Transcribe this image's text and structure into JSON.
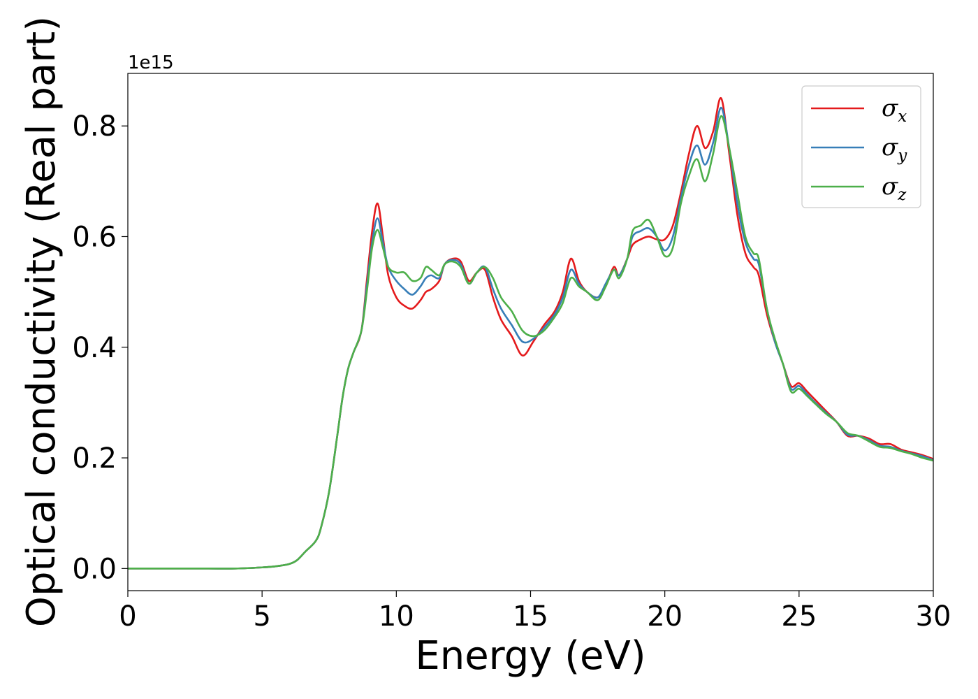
{
  "chart_data": {
    "type": "line",
    "xlabel": "Energy (eV)",
    "ylabel": "Optical conductivity (Real part)",
    "y_offset_label": "1e15",
    "y_scale_factor": 1000000000000000.0,
    "xlim": [
      0,
      30
    ],
    "ylim": [
      -0.04,
      0.895
    ],
    "x_ticks": [
      "0",
      "5",
      "10",
      "15",
      "20",
      "25",
      "30"
    ],
    "y_ticks": [
      "0.0",
      "0.2",
      "0.4",
      "0.6",
      "0.8"
    ],
    "grid": false,
    "legend_position": "top-right",
    "x": [
      0,
      1,
      2,
      3,
      4,
      5,
      5.5,
      6,
      6.3,
      6.6,
      7,
      7.2,
      7.5,
      7.8,
      8,
      8.2,
      8.4,
      8.7,
      8.9,
      9.1,
      9.3,
      9.5,
      9.7,
      10,
      10.3,
      10.6,
      10.9,
      11.1,
      11.3,
      11.6,
      11.8,
      12.1,
      12.4,
      12.7,
      13,
      13.3,
      13.6,
      13.9,
      14.3,
      14.7,
      15.1,
      15.5,
      15.9,
      16.2,
      16.5,
      16.8,
      17.1,
      17.5,
      17.8,
      18.1,
      18.3,
      18.6,
      18.8,
      19.1,
      19.4,
      19.7,
      20,
      20.3,
      20.6,
      20.9,
      21.2,
      21.5,
      21.8,
      22.1,
      22.4,
      22.7,
      23,
      23.3,
      23.5,
      23.8,
      24.1,
      24.4,
      24.7,
      25,
      25.3,
      25.6,
      26,
      26.4,
      26.8,
      27.2,
      27.6,
      28,
      28.4,
      28.8,
      29.2,
      29.6,
      30
    ],
    "series": [
      {
        "name": "σ",
        "subscript": "x",
        "color": "#e41a1c",
        "values": [
          0,
          0,
          0,
          0,
          0,
          0.002,
          0.004,
          0.008,
          0.015,
          0.03,
          0.05,
          0.075,
          0.14,
          0.24,
          0.31,
          0.36,
          0.39,
          0.43,
          0.52,
          0.61,
          0.66,
          0.6,
          0.53,
          0.49,
          0.475,
          0.47,
          0.485,
          0.5,
          0.505,
          0.52,
          0.55,
          0.56,
          0.555,
          0.52,
          0.535,
          0.54,
          0.49,
          0.45,
          0.42,
          0.385,
          0.41,
          0.44,
          0.465,
          0.5,
          0.56,
          0.52,
          0.5,
          0.49,
          0.51,
          0.545,
          0.53,
          0.56,
          0.585,
          0.595,
          0.6,
          0.595,
          0.595,
          0.62,
          0.68,
          0.75,
          0.8,
          0.76,
          0.79,
          0.85,
          0.75,
          0.64,
          0.57,
          0.545,
          0.53,
          0.46,
          0.41,
          0.37,
          0.33,
          0.335,
          0.32,
          0.305,
          0.285,
          0.265,
          0.24,
          0.24,
          0.235,
          0.225,
          0.225,
          0.215,
          0.21,
          0.205,
          0.198
        ]
      },
      {
        "name": "σ",
        "subscript": "y",
        "color": "#377eb8",
        "values": [
          0,
          0,
          0,
          0,
          0,
          0.002,
          0.004,
          0.008,
          0.015,
          0.03,
          0.05,
          0.075,
          0.14,
          0.24,
          0.31,
          0.36,
          0.39,
          0.43,
          0.51,
          0.59,
          0.633,
          0.59,
          0.545,
          0.52,
          0.505,
          0.495,
          0.51,
          0.525,
          0.53,
          0.525,
          0.55,
          0.558,
          0.55,
          0.515,
          0.535,
          0.545,
          0.505,
          0.47,
          0.44,
          0.41,
          0.415,
          0.435,
          0.46,
          0.49,
          0.54,
          0.515,
          0.5,
          0.49,
          0.515,
          0.54,
          0.53,
          0.56,
          0.6,
          0.61,
          0.615,
          0.6,
          0.575,
          0.6,
          0.67,
          0.73,
          0.765,
          0.73,
          0.77,
          0.833,
          0.76,
          0.66,
          0.59,
          0.56,
          0.55,
          0.47,
          0.41,
          0.37,
          0.325,
          0.33,
          0.315,
          0.3,
          0.282,
          0.265,
          0.242,
          0.24,
          0.232,
          0.222,
          0.22,
          0.213,
          0.208,
          0.203,
          0.196
        ]
      },
      {
        "name": "σ",
        "subscript": "z",
        "color": "#4daf4a",
        "values": [
          0,
          0,
          0,
          0,
          0,
          0.002,
          0.004,
          0.008,
          0.015,
          0.03,
          0.05,
          0.075,
          0.14,
          0.24,
          0.31,
          0.36,
          0.39,
          0.43,
          0.5,
          0.58,
          0.612,
          0.58,
          0.545,
          0.535,
          0.535,
          0.52,
          0.525,
          0.545,
          0.54,
          0.53,
          0.55,
          0.555,
          0.545,
          0.515,
          0.535,
          0.545,
          0.525,
          0.49,
          0.465,
          0.43,
          0.42,
          0.43,
          0.455,
          0.48,
          0.525,
          0.51,
          0.5,
          0.485,
          0.51,
          0.54,
          0.525,
          0.56,
          0.61,
          0.62,
          0.63,
          0.6,
          0.565,
          0.58,
          0.66,
          0.71,
          0.74,
          0.7,
          0.75,
          0.818,
          0.76,
          0.68,
          0.6,
          0.57,
          0.56,
          0.47,
          0.415,
          0.37,
          0.32,
          0.325,
          0.312,
          0.298,
          0.28,
          0.265,
          0.245,
          0.24,
          0.23,
          0.22,
          0.218,
          0.212,
          0.207,
          0.2,
          0.195
        ]
      }
    ]
  }
}
